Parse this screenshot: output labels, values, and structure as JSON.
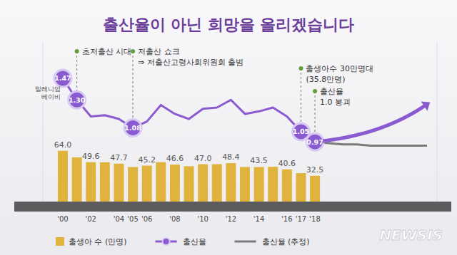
{
  "chart_data": {
    "type": "bar",
    "title": "출산율이 아닌 희망을 올리겠습니다",
    "categories": [
      "'00",
      null,
      "'02",
      null,
      "'04",
      "'05",
      "'06",
      null,
      "'08",
      null,
      "'10",
      null,
      "'12",
      null,
      "'14",
      null,
      "'16",
      "'17",
      "'18",
      null,
      null,
      null,
      null,
      null,
      null,
      null,
      null
    ],
    "series": [
      {
        "name": "출생아 수 (만명)",
        "type": "bar",
        "color": "#e0b43c",
        "values": [
          64.0,
          55.7,
          49.6,
          49.5,
          47.7,
          43.5,
          45.2,
          49.7,
          46.6,
          44.5,
          47.0,
          47.1,
          48.4,
          43.6,
          43.5,
          43.8,
          40.6,
          35.8,
          32.5,
          null,
          null,
          null,
          null,
          null,
          null,
          null,
          null
        ],
        "value_labels": [
          "64.0",
          null,
          "49.6",
          null,
          "47.7",
          null,
          "45.2",
          null,
          "46.6",
          null,
          "47.0",
          null,
          "48.4",
          null,
          "43.5",
          null,
          "40.6",
          null,
          "32.5",
          null,
          null,
          null,
          null,
          null,
          null,
          null,
          null
        ]
      },
      {
        "name": "출산율",
        "type": "line",
        "axis": "y2",
        "color": "#8a5bd0",
        "marker": "circle",
        "line_style": "solid",
        "values": [
          1.47,
          1.3,
          1.17,
          1.18,
          1.15,
          1.08,
          1.13,
          1.26,
          1.19,
          1.15,
          1.23,
          1.24,
          1.3,
          1.19,
          1.21,
          1.24,
          1.17,
          1.05,
          0.97,
          null,
          null,
          null,
          null,
          null,
          null,
          null,
          null
        ],
        "value_labels": [
          "1.47",
          "1.30",
          null,
          null,
          null,
          "1.08",
          null,
          null,
          null,
          null,
          null,
          null,
          null,
          null,
          null,
          null,
          null,
          "1.05",
          "0.97",
          null,
          null,
          null,
          null,
          null,
          null,
          null,
          null
        ]
      },
      {
        "name": "출산율 (추정)",
        "type": "line",
        "axis": "y2",
        "color": "#7a7a7a",
        "line_style": "solid",
        "values": [
          null,
          null,
          null,
          null,
          null,
          null,
          null,
          null,
          null,
          null,
          null,
          null,
          null,
          null,
          null,
          null,
          null,
          null,
          0.97,
          0.96,
          0.95,
          0.95,
          0.94,
          0.94,
          0.94,
          0.94,
          0.94
        ]
      }
    ],
    "ylim": [
      0,
      200
    ],
    "y2lim": [
      0.5,
      1.75
    ],
    "grid": false,
    "legend": "bottom",
    "data_labels": true,
    "tick_labels": "x",
    "annotations": [
      {
        "lines": [
          "밀레니엄",
          "베이비"
        ],
        "index": 0
      },
      {
        "lines": [
          "초저출산 시대"
        ],
        "index": 1
      },
      {
        "lines": [
          "저출산 쇼크",
          "⇒ 저출산고령사회위원회 출범"
        ],
        "index": 5
      },
      {
        "lines": [
          "출생아수 30만명대",
          "(35.8만명)"
        ],
        "index": 17
      },
      {
        "lines": [
          "출산율",
          "1.0 붕괴"
        ],
        "index": 18
      }
    ],
    "source": "NEWSIS"
  }
}
